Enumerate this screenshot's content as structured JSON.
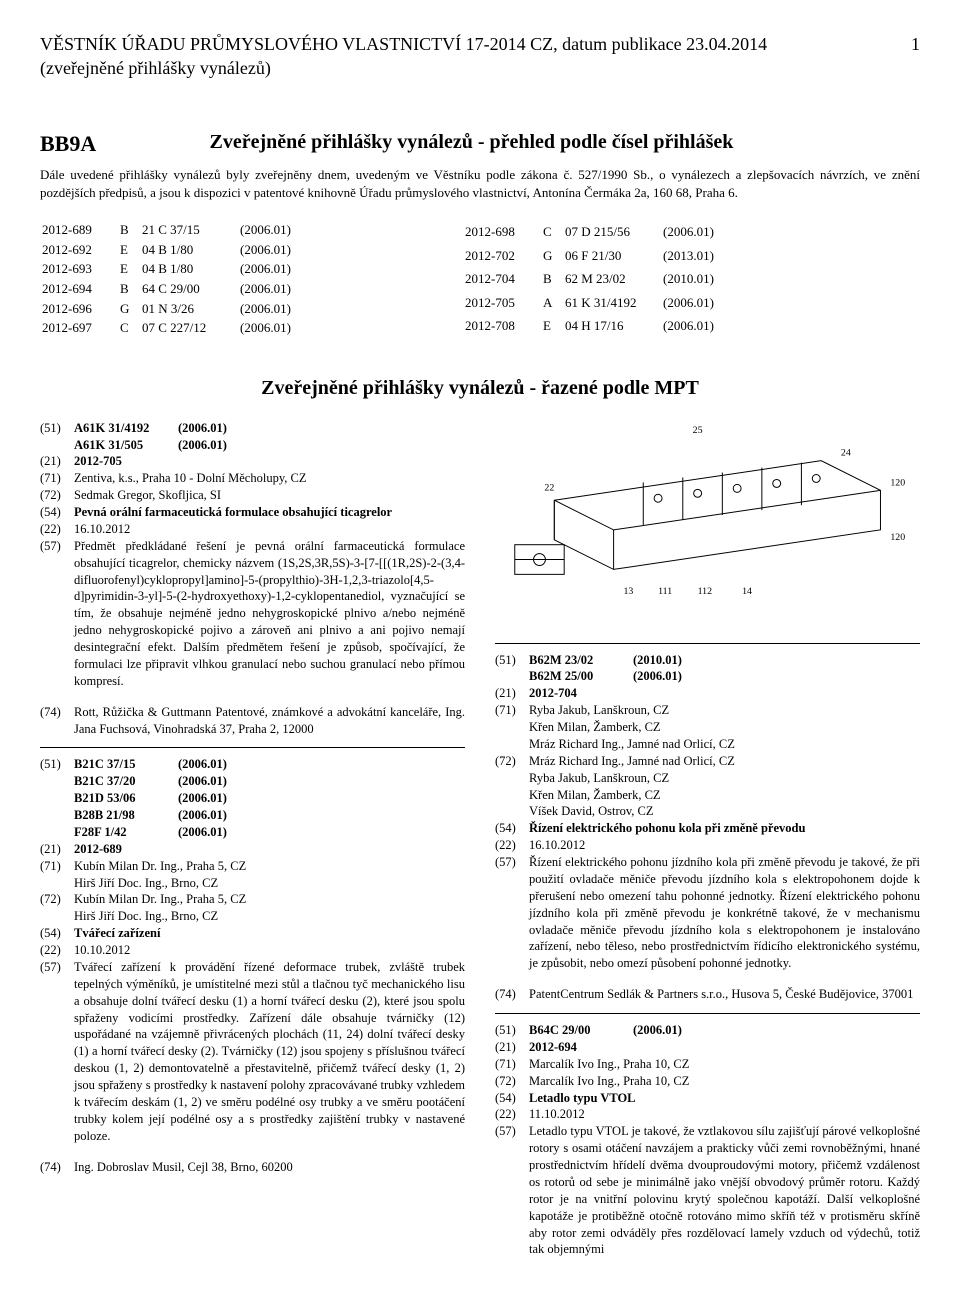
{
  "header": {
    "title": "VĚSTNÍK ÚŘADU PRŮMYSLOVÉHO VLASTNICTVÍ 17-2014 CZ, datum publikace 23.04.2014",
    "subtitle": "(zveřejněné přihlášky vynálezů)",
    "page": "1"
  },
  "section": {
    "code": "BB9A",
    "heading": "Zveřejněné přihlášky vynálezů - přehled podle čísel přihlášek",
    "intro": "Dále uvedené přihlášky vynálezů byly zveřejněny dnem, uvedeným ve Věstníku podle zákona č. 527/1990 Sb., o vynálezech a zlepšovacích návrzích, ve znění pozdějších předpisů, a jsou k dispozici v patentové knihovně Úřadu průmyslového vlastnictví, Antonína Čermáka 2a, 160 68, Praha 6."
  },
  "table_left": [
    [
      "2012-689",
      "B",
      "21 C 37/15",
      "(2006.01)"
    ],
    [
      "2012-692",
      "E",
      "04 B 1/80",
      "(2006.01)"
    ],
    [
      "2012-693",
      "E",
      "04 B 1/80",
      "(2006.01)"
    ],
    [
      "2012-694",
      "B",
      "64 C 29/00",
      "(2006.01)"
    ],
    [
      "2012-696",
      "G",
      "01 N 3/26",
      "(2006.01)"
    ],
    [
      "2012-697",
      "C",
      "07 C 227/12",
      "(2006.01)"
    ]
  ],
  "table_right": [
    [
      "2012-698",
      "C",
      "07 D 215/56",
      "(2006.01)"
    ],
    [
      "2012-702",
      "G",
      "06 F 21/30",
      "(2013.01)"
    ],
    [
      "2012-704",
      "B",
      "62 M 23/02",
      "(2010.01)"
    ],
    [
      "2012-705",
      "A",
      "61 K 31/4192",
      "(2006.01)"
    ],
    [
      "2012-708",
      "E",
      "04 H 17/16",
      "(2006.01)"
    ]
  ],
  "mpt_heading": "Zveřejněné přihlášky vynálezů - řazené podle MPT",
  "entry1": {
    "l1a": "(51)",
    "l1b": "A61K 31/4192",
    "l1c": "(2006.01)",
    "l2b": "A61K 31/505",
    "l2c": "(2006.01)",
    "l3a": "(21)",
    "l3b": "2012-705",
    "l4a": "(71)",
    "l4b": "Zentiva, k.s., Praha 10 - Dolní Měcholupy, CZ",
    "l5a": "(72)",
    "l5b": "Sedmak Gregor, Skofljica, SI",
    "l6a": "(54)",
    "l6b": "Pevná orální farmaceutická formulace obsahující ticagrelor",
    "l7a": "(22)",
    "l7b": "16.10.2012",
    "l8a": "(57)",
    "l8b": "Předmět předkládané řešení je pevná orální farmaceutická formulace obsahující ticagrelor, chemicky názvem (1S,2S,3R,5S)-3-[7-[[(1R,2S)-2-(3,4-difluorofenyl)cyklopropyl]amino]-5-(propylthio)-3H-1,2,3-triazolo[4,5-d]pyrimidin-3-yl]-5-(2-hydroxyethoxy)-1,2-cyklopentanediol, vyznačující se tím, že obsahuje nejméně jedno nehygroskopické plnivo a/nebo nejméně jedno nehygroskopické pojivo a zároveň ani plnivo a ani pojivo nemají desintegrační efekt. Dalším předmětem řešení je způsob, spočívající, že formulaci lze připravit vlhkou granulací nebo suchou granulací nebo přímou kompresí.",
    "l9a": "(74)",
    "l9b": "Rott, Růžička & Guttmann Patentové, známkové a advokátní kanceláře, Ing. Jana Fuchsová, Vinohradská 37, Praha 2, 12000"
  },
  "entry2": {
    "ipc": [
      [
        "(51)",
        "B21C 37/15",
        "(2006.01)"
      ],
      [
        "",
        "B21C 37/20",
        "(2006.01)"
      ],
      [
        "",
        "B21D 53/06",
        "(2006.01)"
      ],
      [
        "",
        "B28B 21/98",
        "(2006.01)"
      ],
      [
        "",
        "F28F 1/42",
        "(2006.01)"
      ]
    ],
    "l21a": "(21)",
    "l21b": "2012-689",
    "l71a": "(71)",
    "l71b": "Kubín Milan Dr. Ing., Praha 5, CZ",
    "l71c": "Hirš Jiří Doc. Ing., Brno, CZ",
    "l72a": "(72)",
    "l72b": "Kubín Milan Dr. Ing., Praha 5, CZ",
    "l72c": "Hirš Jiří Doc. Ing., Brno, CZ",
    "l54a": "(54)",
    "l54b": "Tvářecí zařízení",
    "l22a": "(22)",
    "l22b": "10.10.2012",
    "l57a": "(57)",
    "l57b": "Tvářecí zařízení k provádění řízené deformace trubek, zvláště trubek tepelných výměníků, je umístitelné mezi stůl a tlačnou tyč mechanického lisu a obsahuje dolní tvářecí desku (1) a horní tvářecí desku (2), které jsou spolu spřaženy vodicími prostředky. Zařízení dále obsahuje tvárničky (12) uspořádané na vzájemně přivrácených plochách (11, 24) dolní tvářecí desky (1) a horní tvářecí desky (2). Tvárničky (12) jsou spojeny s příslušnou tvářecí deskou (1, 2) demontovatelně a přestavitelně, přičemž tvářecí desky (1, 2) jsou spřaženy s prostředky k nastavení polohy zpracovávané trubky vzhledem k tvářecím deskám (1, 2) ve směru podélné osy trubky a ve směru pootáčení trubky kolem její podélné osy a s prostředky zajištění trubky v nastavené poloze.",
    "l74a": "(74)",
    "l74b": "Ing. Dobroslav Musil, Cejl 38, Brno, 60200"
  },
  "drawing": {
    "labels": [
      "25",
      "120",
      "22",
      "24",
      "13",
      "111",
      "112",
      "14",
      "120"
    ]
  },
  "entry3": {
    "ipc": [
      [
        "(51)",
        "B62M 23/02",
        "(2010.01)"
      ],
      [
        "",
        "B62M 25/00",
        "(2006.01)"
      ]
    ],
    "l21a": "(21)",
    "l21b": "2012-704",
    "l71a": "(71)",
    "l71b": "Ryba Jakub, Lanškroun, CZ",
    "l71c": "Křen Milan, Žamberk, CZ",
    "l71d": "Mráz Richard Ing., Jamné nad Orlicí, CZ",
    "l72a": "(72)",
    "l72b": "Mráz Richard Ing., Jamné nad Orlicí, CZ",
    "l72c": "Ryba Jakub, Lanškroun, CZ",
    "l72d": "Křen Milan, Žamberk, CZ",
    "l72e": "Víšek David, Ostrov, CZ",
    "l54a": "(54)",
    "l54b": "Řízení elektrického pohonu kola při změně převodu",
    "l22a": "(22)",
    "l22b": "16.10.2012",
    "l57a": "(57)",
    "l57b": "Řízení elektrického pohonu jízdního kola při změně převodu je takové, že při použití ovladače měniče převodu jízdního kola s elektropohonem dojde k přerušení nebo omezení tahu pohonné jednotky. Řízení elektrického pohonu jízdního kola při změně převodu je konkrétně takové, že v mechanismu ovladače měniče převodu jízdního kola s elektropohonem je instalováno zařízení, nebo těleso, nebo prostřednictvím řídicího elektronického systému, je způsobit, nebo omezí působení pohonné jednotky.",
    "l74a": "(74)",
    "l74b": "PatentCentrum Sedlák & Partners s.r.o., Husova 5, České Budějovice, 37001"
  },
  "entry4": {
    "ipc": [
      [
        "(51)",
        "B64C 29/00",
        "(2006.01)"
      ]
    ],
    "l21a": "(21)",
    "l21b": "2012-694",
    "l71a": "(71)",
    "l71b": "Marcalík Ivo Ing., Praha 10, CZ",
    "l72a": "(72)",
    "l72b": "Marcalík Ivo Ing., Praha 10, CZ",
    "l54a": "(54)",
    "l54b": "Letadlo typu VTOL",
    "l22a": "(22)",
    "l22b": "11.10.2012",
    "l57a": "(57)",
    "l57b": "Letadlo typu VTOL je takové, že vztlakovou sílu zajišťují párové velkoplošné rotory s osami otáčení navzájem a prakticky vůči zemi rovnoběžnými, hnané prostřednictvím hřídelí dvěma dvouproudovými motory, přičemž vzdálenost os rotorů od sebe je minimálně jako vnější obvodový průměr rotoru. Každý rotor je na vnitřní polovinu krytý společnou kapotáží. Další velkoplošné kapotáže je protiběžně otočně rotováno mimo skříň též v protisměru skříně aby rotor zemi odváděly přes rozdělovací lamely vzduch od výdechů, totiž tak objemnými"
  }
}
